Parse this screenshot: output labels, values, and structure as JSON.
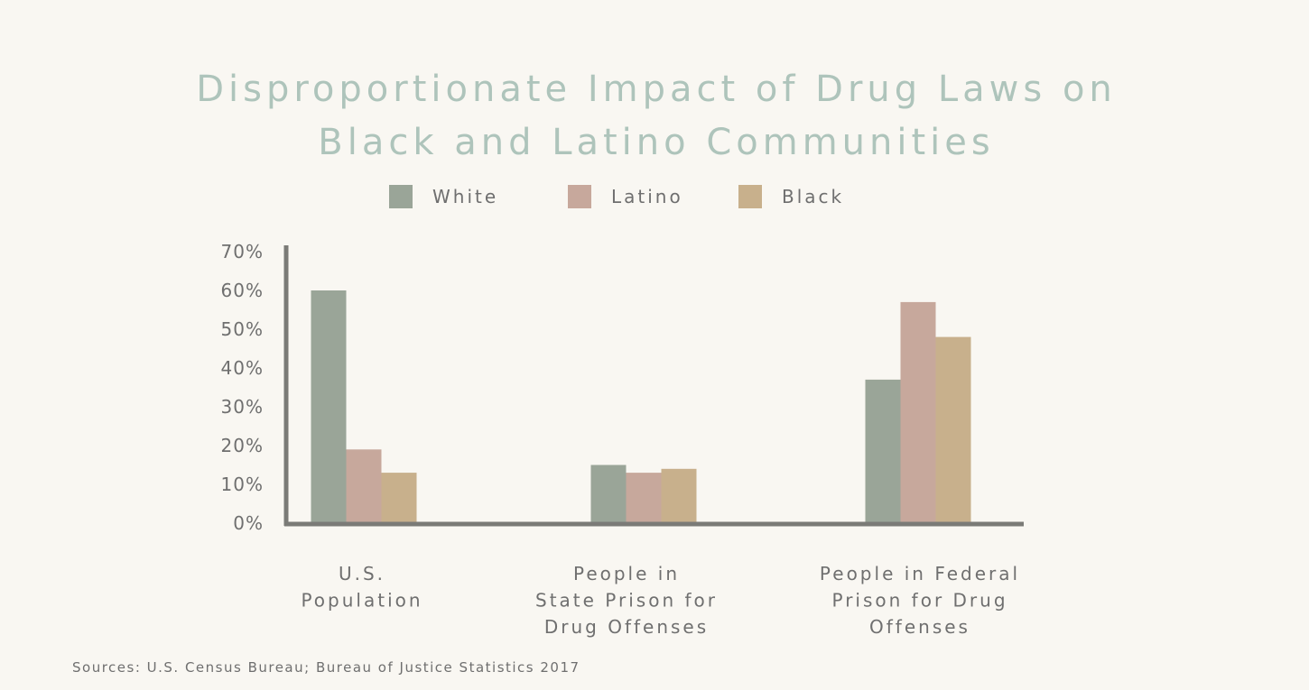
{
  "chart_data": {
    "type": "bar",
    "title": [
      "Disproportionate Impact of Drug Laws on",
      "Black and Latino Communities"
    ],
    "categories": [
      [
        "U.S.",
        "Population"
      ],
      [
        "People in",
        "State Prison for",
        "Drug Offenses"
      ],
      [
        "People in Federal",
        "Prison for Drug",
        "Offenses"
      ]
    ],
    "series": [
      {
        "name": "White",
        "color": "#9aa598",
        "values": [
          60,
          15,
          37
        ]
      },
      {
        "name": "Latino",
        "color": "#c7a89c",
        "values": [
          19,
          13,
          57
        ]
      },
      {
        "name": "Black",
        "color": "#c8b08c",
        "values": [
          13,
          14,
          48
        ]
      }
    ],
    "yticks": [
      "0%",
      "10%",
      "20%",
      "30%",
      "40%",
      "50%",
      "60%",
      "70%"
    ],
    "ylim": [
      0,
      70
    ],
    "legend_position": "top",
    "grid": false,
    "xlabel": "",
    "ylabel": "",
    "axis_color": "#7b7b77"
  },
  "source": "Sources: U.S. Census Bureau; Bureau of Justice Statistics 2017"
}
